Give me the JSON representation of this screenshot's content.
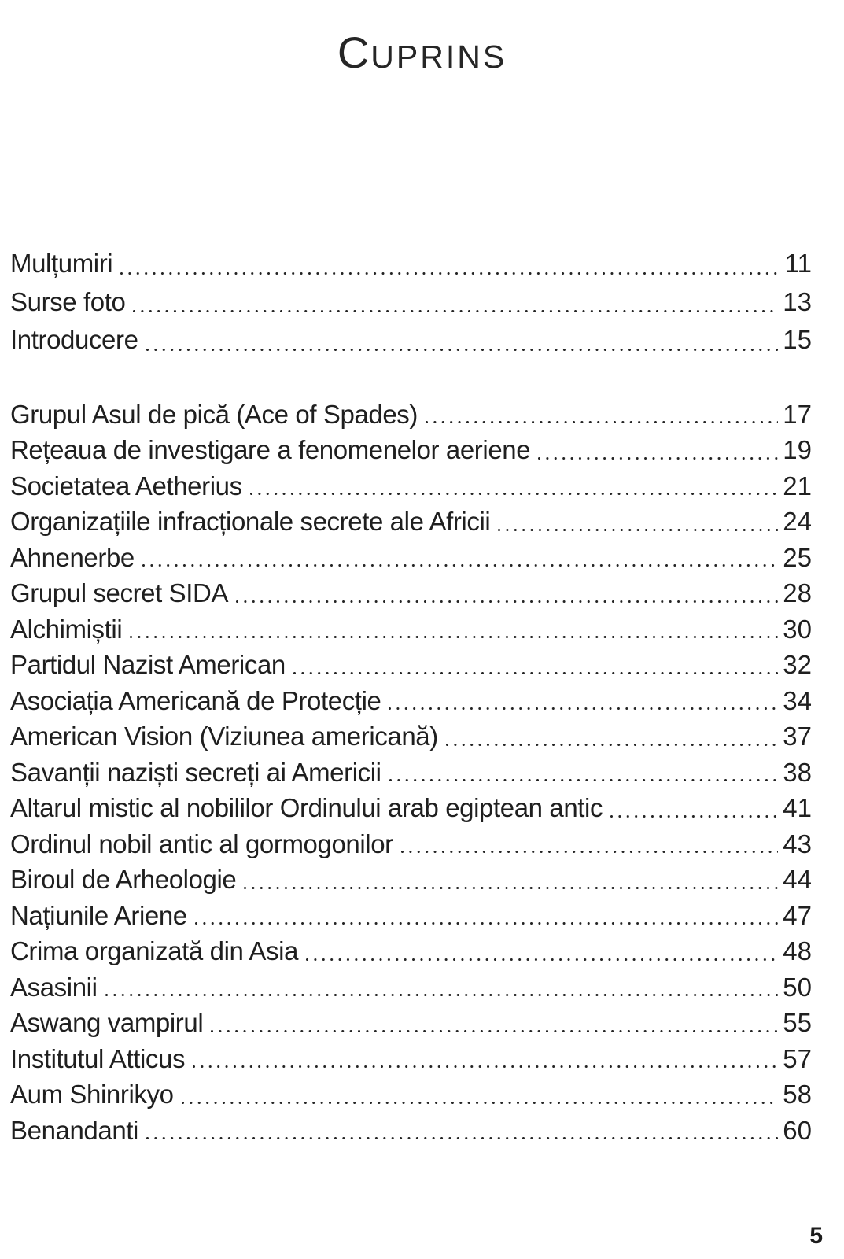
{
  "page": {
    "title": {
      "initial": "C",
      "rest": "UPRINS"
    },
    "folio": "5"
  },
  "colors": {
    "text": "#1f1f1f",
    "background": "#ffffff"
  },
  "toc": {
    "front_matter": [
      {
        "title": "Mulțumiri",
        "page": "11"
      },
      {
        "title": "Surse foto",
        "page": "13"
      },
      {
        "title": "Introducere",
        "page": "15"
      }
    ],
    "chapters": [
      {
        "title": "Grupul Asul de pică (Ace of Spades)",
        "page": "17"
      },
      {
        "title": "Rețeaua de investigare a fenomenelor aeriene",
        "page": "19"
      },
      {
        "title": "Societatea Aetherius",
        "page": "21"
      },
      {
        "title": "Organizațiile infracționale secrete ale Africii",
        "page": "24"
      },
      {
        "title": "Ahnenerbe",
        "page": "25"
      },
      {
        "title": "Grupul secret SIDA",
        "page": "28"
      },
      {
        "title": "Alchimiștii",
        "page": "30"
      },
      {
        "title": "Partidul Nazist American",
        "page": "32"
      },
      {
        "title": "Asociația Americană de Protecție",
        "page": "34"
      },
      {
        "title": "American Vision (Viziunea americană)",
        "page": "37"
      },
      {
        "title": "Savanții naziști secreți ai Americii",
        "page": "38"
      },
      {
        "title": "Altarul mistic al nobililor Ordinului arab egiptean antic",
        "page": "41"
      },
      {
        "title": "Ordinul nobil antic al gormogonilor",
        "page": "43"
      },
      {
        "title": "Biroul de Arheologie",
        "page": "44"
      },
      {
        "title": "Națiunile Ariene",
        "page": "47"
      },
      {
        "title": "Crima organizată din Asia",
        "page": "48"
      },
      {
        "title": "Asasinii",
        "page": "50"
      },
      {
        "title": "Aswang vampirul",
        "page": "55"
      },
      {
        "title": "Institutul Atticus",
        "page": "57"
      },
      {
        "title": "Aum Shinrikyo",
        "page": "58"
      },
      {
        "title": "Benandanti",
        "page": "60"
      }
    ]
  }
}
